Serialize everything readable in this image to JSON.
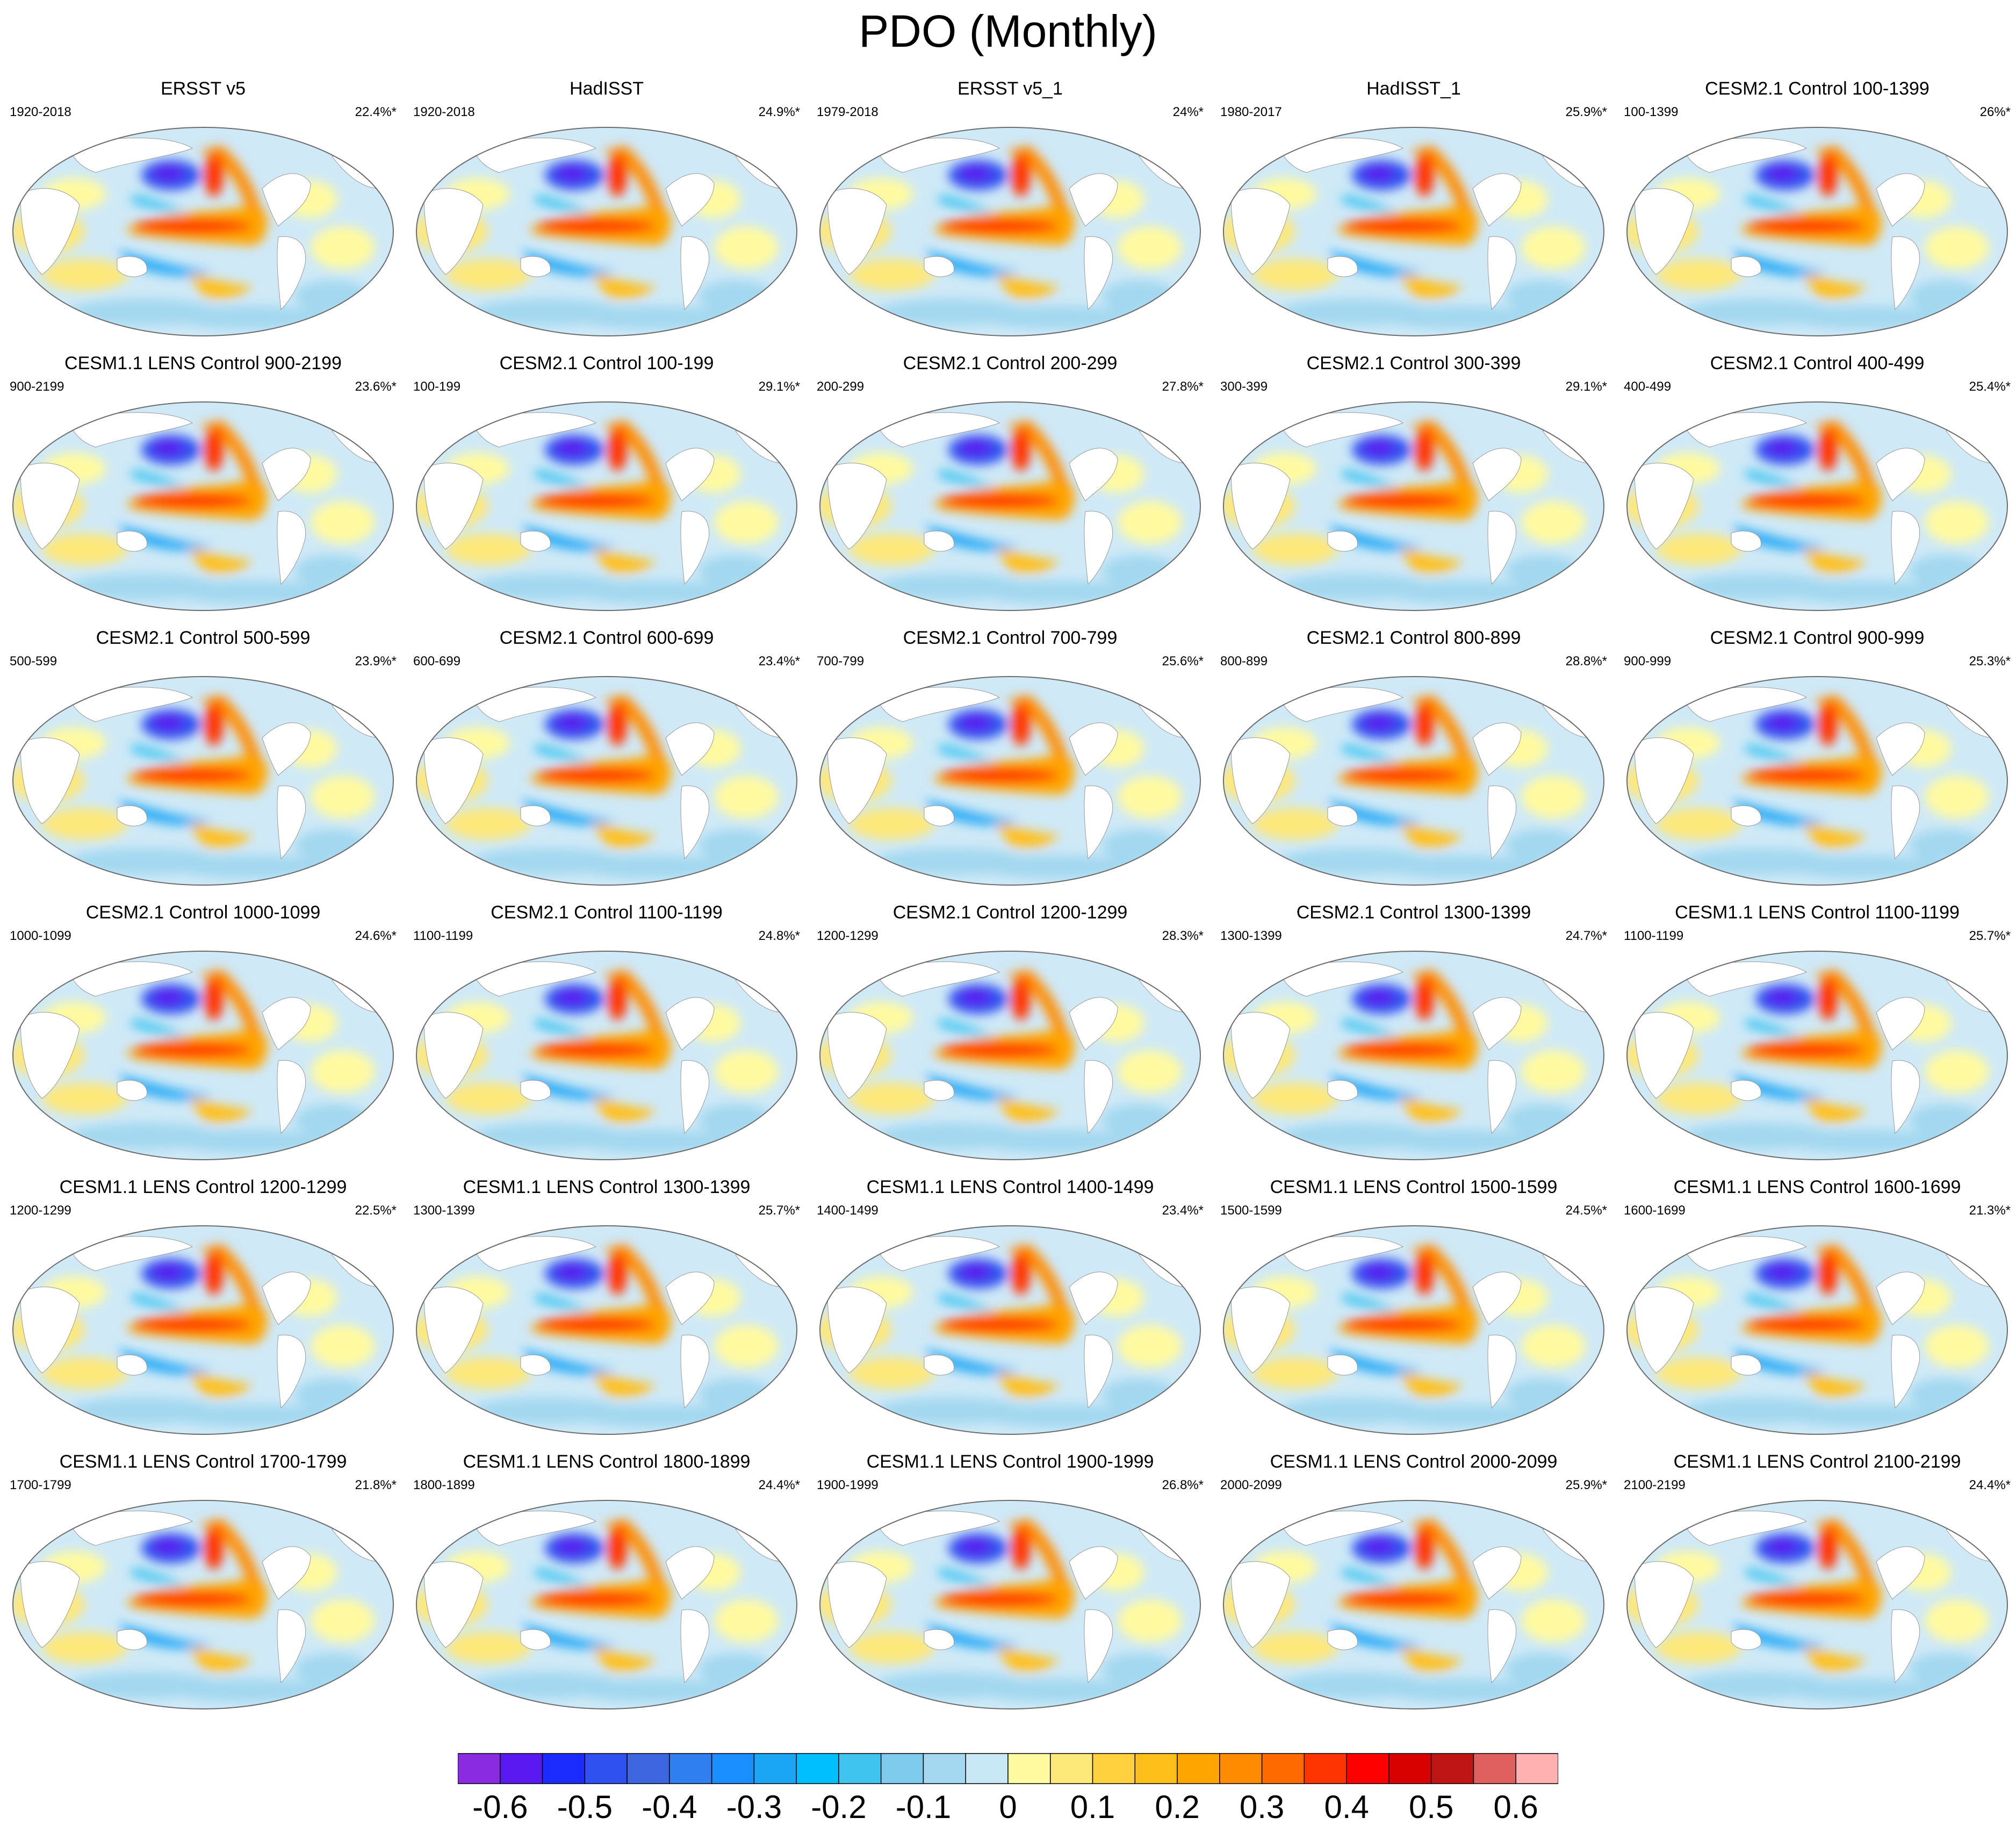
{
  "title": "PDO (Monthly)",
  "colorbar": {
    "colors": [
      "#8a2be2",
      "#5a19f0",
      "#1a2cff",
      "#2f51f0",
      "#3e66e0",
      "#2f7ff0",
      "#1a8fff",
      "#1aa6f5",
      "#00bfff",
      "#3fc4f0",
      "#7fcbee",
      "#a3d8f0",
      "#c8e8f5",
      "#fffaa0",
      "#fde87a",
      "#ffd13f",
      "#ffbf1a",
      "#ffa500",
      "#ff8c00",
      "#ff6a00",
      "#ff3500",
      "#ff0000",
      "#d90000",
      "#c01515",
      "#e06060",
      "#ffb0b0"
    ],
    "ticks": [
      "-0.6",
      "-0.5",
      "-0.4",
      "-0.3",
      "-0.2",
      "-0.1",
      "0",
      "0.1",
      "0.2",
      "0.3",
      "0.4",
      "0.5",
      "0.6"
    ],
    "range": [
      -0.65,
      0.65
    ]
  },
  "chart_data": {
    "type": "heatmap",
    "title": "PDO (Monthly)",
    "panels": [
      {
        "title": "ERSST v5",
        "years": "1920-2018",
        "pct": "22.4%*"
      },
      {
        "title": "HadISST",
        "years": "1920-2018",
        "pct": "24.9%*"
      },
      {
        "title": "ERSST v5_1",
        "years": "1979-2018",
        "pct": "24%*"
      },
      {
        "title": "HadISST_1",
        "years": "1980-2017",
        "pct": "25.9%*"
      },
      {
        "title": "CESM2.1 Control 100-1399",
        "years": "100-1399",
        "pct": "26%*"
      },
      {
        "title": "CESM1.1 LENS Control 900-2199",
        "years": "900-2199",
        "pct": "23.6%*"
      },
      {
        "title": "CESM2.1 Control 100-199",
        "years": "100-199",
        "pct": "29.1%*"
      },
      {
        "title": "CESM2.1 Control 200-299",
        "years": "200-299",
        "pct": "27.8%*"
      },
      {
        "title": "CESM2.1 Control 300-399",
        "years": "300-399",
        "pct": "29.1%*"
      },
      {
        "title": "CESM2.1 Control 400-499",
        "years": "400-499",
        "pct": "25.4%*"
      },
      {
        "title": "CESM2.1 Control 500-599",
        "years": "500-599",
        "pct": "23.9%*"
      },
      {
        "title": "CESM2.1 Control 600-699",
        "years": "600-699",
        "pct": "23.4%*"
      },
      {
        "title": "CESM2.1 Control 700-799",
        "years": "700-799",
        "pct": "25.6%*"
      },
      {
        "title": "CESM2.1 Control 800-899",
        "years": "800-899",
        "pct": "28.8%*"
      },
      {
        "title": "CESM2.1 Control 900-999",
        "years": "900-999",
        "pct": "25.3%*"
      },
      {
        "title": "CESM2.1 Control 1000-1099",
        "years": "1000-1099",
        "pct": "24.6%*"
      },
      {
        "title": "CESM2.1 Control 1100-1199",
        "years": "1100-1199",
        "pct": "24.8%*"
      },
      {
        "title": "CESM2.1 Control 1200-1299",
        "years": "1200-1299",
        "pct": "28.3%*"
      },
      {
        "title": "CESM2.1 Control 1300-1399",
        "years": "1300-1399",
        "pct": "24.7%*"
      },
      {
        "title": "CESM1.1 LENS Control 1100-1199",
        "years": "1100-1199",
        "pct": "25.7%*"
      },
      {
        "title": "CESM1.1 LENS Control 1200-1299",
        "years": "1200-1299",
        "pct": "22.5%*"
      },
      {
        "title": "CESM1.1 LENS Control 1300-1399",
        "years": "1300-1399",
        "pct": "25.7%*"
      },
      {
        "title": "CESM1.1 LENS Control 1400-1499",
        "years": "1400-1499",
        "pct": "23.4%*"
      },
      {
        "title": "CESM1.1 LENS Control 1500-1599",
        "years": "1500-1599",
        "pct": "24.5%*"
      },
      {
        "title": "CESM1.1 LENS Control 1600-1699",
        "years": "1600-1699",
        "pct": "21.3%*"
      },
      {
        "title": "CESM1.1 LENS Control 1700-1799",
        "years": "1700-1799",
        "pct": "21.8%*"
      },
      {
        "title": "CESM1.1 LENS Control 1800-1899",
        "years": "1800-1899",
        "pct": "24.4%*"
      },
      {
        "title": "CESM1.1 LENS Control 1900-1999",
        "years": "1900-1999",
        "pct": "26.8%*"
      },
      {
        "title": "CESM1.1 LENS Control 2000-2099",
        "years": "2000-2099",
        "pct": "25.9%*"
      },
      {
        "title": "CESM1.1 LENS Control 2100-2199",
        "years": "2100-2199",
        "pct": "24.4%*"
      }
    ]
  }
}
